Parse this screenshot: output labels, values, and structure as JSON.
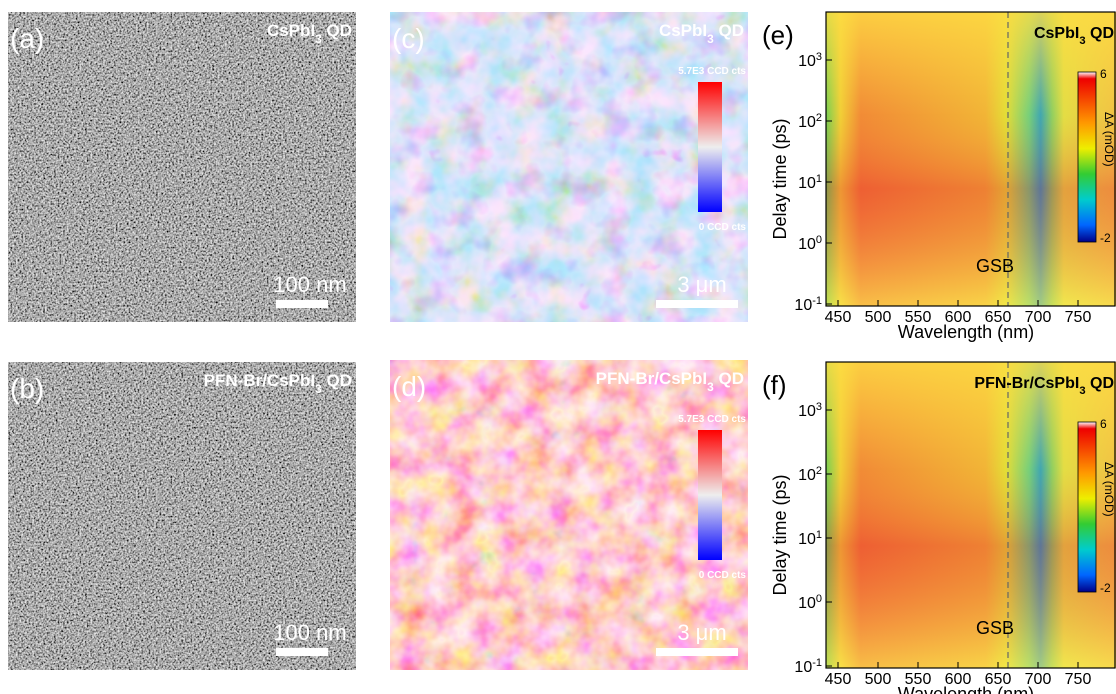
{
  "panels": [
    {
      "label": "(a)",
      "title": {
        "main": "CsPbI",
        "sub": "3",
        "rest": " QD"
      },
      "scale_bar": "100 nm"
    },
    {
      "label": "(b)",
      "title": {
        "main": "PFN-Br/CsPbI",
        "sub": "3",
        "rest": " QD"
      },
      "scale_bar": "100 nm"
    },
    {
      "label": "(c)",
      "title": {
        "main": "CsPbI",
        "sub": "3",
        "rest": " QD"
      },
      "scale_bar": "3 μm",
      "colorbar": {
        "max": "5.7E3 CCD cts",
        "min": "0 CCD cts"
      }
    },
    {
      "label": "(d)",
      "title": {
        "main": "PFN-Br/CsPbI",
        "sub": "3",
        "rest": " QD"
      },
      "scale_bar": "3 μm",
      "colorbar": {
        "max": "5.7E3 CCD cts",
        "min": "0 CCD cts"
      }
    },
    {
      "label": "(e)",
      "title": {
        "main": "CsPbI",
        "sub": "3",
        "rest": " QD"
      },
      "y_axis_label": "Delay time (ps)",
      "x_axis_label": "Wavelength (nm)",
      "y_ticks": [
        {
          "base": "10",
          "exp": "-1"
        },
        {
          "base": "10",
          "exp": "0"
        },
        {
          "base": "10",
          "exp": "1"
        },
        {
          "base": "10",
          "exp": "2"
        },
        {
          "base": "10",
          "exp": "3"
        }
      ],
      "x_ticks": [
        "450",
        "500",
        "550",
        "600",
        "650",
        "700",
        "750"
      ],
      "colorbar_label": "ΔA (mOD)",
      "colorbar_ticks": [
        "6",
        "-2"
      ],
      "annotation": "GSB"
    },
    {
      "label": "(f)",
      "title": {
        "main": "PFN-Br/CsPbI",
        "sub": "3",
        "rest": " QD"
      },
      "y_axis_label": "Delay time (ps)",
      "x_axis_label": "Wavelength (nm)",
      "y_ticks": [
        {
          "base": "10",
          "exp": "-1"
        },
        {
          "base": "10",
          "exp": "0"
        },
        {
          "base": "10",
          "exp": "1"
        },
        {
          "base": "10",
          "exp": "2"
        },
        {
          "base": "10",
          "exp": "3"
        }
      ],
      "x_ticks": [
        "450",
        "500",
        "550",
        "600",
        "650",
        "700",
        "750"
      ],
      "colorbar_label": "ΔA (mOD)",
      "colorbar_ticks": [
        "6",
        "-2"
      ],
      "annotation": "GSB"
    }
  ]
}
